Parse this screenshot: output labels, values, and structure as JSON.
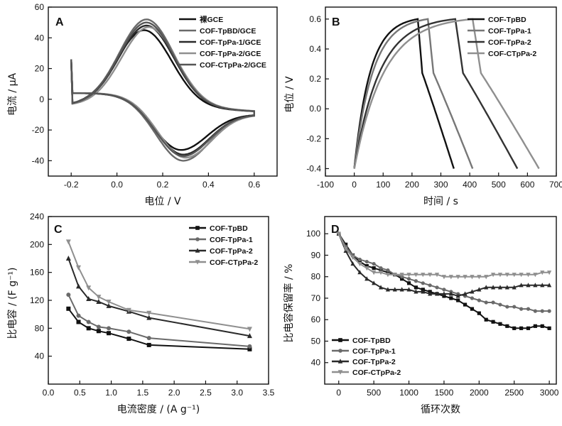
{
  "chart_data": [
    {
      "panel": "A",
      "type": "line",
      "xlabel": "电位 / V",
      "ylabel": "电流 / μA",
      "xlim": [
        -0.3,
        0.7
      ],
      "ylim": [
        -50,
        60
      ],
      "xticks": [
        -0.2,
        0.0,
        0.2,
        0.4,
        0.6
      ],
      "xtick_labels": [
        "-0.2",
        "0.0",
        "0.2",
        "0.4",
        "0.6"
      ],
      "yticks": [
        -40,
        -20,
        0,
        20,
        40,
        60
      ],
      "ytick_labels": [
        "-40",
        "-20",
        "0",
        "20",
        "40",
        "60"
      ],
      "legend_position": "top-right",
      "series": [
        {
          "name": "裸GCE",
          "color": "#111111",
          "ipa": 45,
          "epa": 0.12,
          "ipc": -33,
          "epc": 0.28
        },
        {
          "name": "COF-TpBD/GCE",
          "color": "#6a6a6a",
          "ipa": 52,
          "epa": 0.13,
          "ipc": -40,
          "epc": 0.29
        },
        {
          "name": "COF-TpPa-1/GCE",
          "color": "#2a2a2a",
          "ipa": 48,
          "epa": 0.13,
          "ipc": -36,
          "epc": 0.29
        },
        {
          "name": "COF-TpPa-2/GCE",
          "color": "#8f8f8f",
          "ipa": 47,
          "epa": 0.14,
          "ipc": -38,
          "epc": 0.3
        },
        {
          "name": "COF-CTpPa-2/GCE",
          "color": "#555555",
          "ipa": 50,
          "epa": 0.13,
          "ipc": -37,
          "epc": 0.29
        }
      ],
      "x_range_scan": [
        -0.2,
        0.6
      ]
    },
    {
      "panel": "B",
      "type": "line",
      "xlabel": "时间 / s",
      "ylabel": "电位 / V",
      "xlim": [
        -100,
        700
      ],
      "ylim": [
        -0.45,
        0.68
      ],
      "xticks": [
        -100,
        0,
        100,
        200,
        300,
        400,
        500,
        600,
        700
      ],
      "xtick_labels": [
        "-100",
        "0",
        "100",
        "200",
        "300",
        "400",
        "500",
        "600",
        "700"
      ],
      "yticks": [
        -0.4,
        -0.2,
        0.0,
        0.2,
        0.4,
        0.6
      ],
      "ytick_labels": [
        "-0.4",
        "-0.2",
        "0.0",
        "0.2",
        "0.4",
        "0.6"
      ],
      "legend_position": "top-right",
      "series": [
        {
          "name": "COF-TpBD",
          "color": "#111111",
          "charge_end": 220,
          "discharge_end": 345
        },
        {
          "name": "COF-TpPa-1",
          "color": "#777777",
          "charge_end": 255,
          "discharge_end": 410
        },
        {
          "name": "COF-TpPa-2",
          "color": "#333333",
          "charge_end": 350,
          "discharge_end": 565
        },
        {
          "name": "COF-CTpPa-2",
          "color": "#8f8f8f",
          "charge_end": 410,
          "discharge_end": 640
        }
      ],
      "v_min": -0.4,
      "v_max": 0.6
    },
    {
      "panel": "C",
      "type": "line",
      "xlabel": "电流密度 / (A g⁻¹)",
      "ylabel": "比电容 / (F g⁻¹)",
      "xlim": [
        0.0,
        3.5
      ],
      "ylim": [
        0,
        240
      ],
      "xticks": [
        0.0,
        0.5,
        1.0,
        1.5,
        2.0,
        2.5,
        3.0,
        3.5
      ],
      "xtick_labels": [
        "0.0",
        "0.5",
        "1.0",
        "1.5",
        "2.0",
        "2.5",
        "3.0",
        "3.5"
      ],
      "yticks": [
        40,
        80,
        120,
        160,
        200,
        240
      ],
      "ytick_labels": [
        "40",
        "80",
        "120",
        "160",
        "200",
        "240"
      ],
      "legend_position": "top-right",
      "x": [
        0.32,
        0.48,
        0.64,
        0.8,
        0.96,
        1.28,
        1.6,
        3.2
      ],
      "series": [
        {
          "name": "COF-TpBD",
          "color": "#111111",
          "marker": "square",
          "values": [
            108,
            89,
            80,
            76,
            73,
            65,
            56,
            50
          ]
        },
        {
          "name": "COF-TpPa-1",
          "color": "#6a6a6a",
          "marker": "circle",
          "values": [
            128,
            98,
            89,
            82,
            80,
            75,
            66,
            54
          ]
        },
        {
          "name": "COF-TpPa-2",
          "color": "#2a2a2a",
          "marker": "triangle-up",
          "values": [
            180,
            140,
            122,
            118,
            112,
            104,
            95,
            69
          ]
        },
        {
          "name": "COF-CTpPa-2",
          "color": "#8f8f8f",
          "marker": "triangle-down",
          "values": [
            204,
            167,
            138,
            125,
            118,
            106,
            102,
            79
          ]
        }
      ]
    },
    {
      "panel": "D",
      "type": "line",
      "xlabel": "循环次数",
      "ylabel": "比电容保留率 / %",
      "xlim": [
        -200,
        3100
      ],
      "ylim": [
        30,
        108
      ],
      "xticks": [
        0,
        500,
        1000,
        1500,
        2000,
        2500,
        3000
      ],
      "xtick_labels": [
        "0",
        "500",
        "1000",
        "1500",
        "2000",
        "2500",
        "3000"
      ],
      "yticks": [
        40,
        50,
        60,
        70,
        80,
        90,
        100
      ],
      "ytick_labels": [
        "40",
        "50",
        "60",
        "70",
        "80",
        "90",
        "100"
      ],
      "legend_position": "bottom-left",
      "x": [
        0,
        100,
        200,
        300,
        400,
        500,
        600,
        700,
        800,
        900,
        1000,
        1100,
        1200,
        1300,
        1400,
        1500,
        1600,
        1700,
        1800,
        1900,
        2000,
        2100,
        2200,
        2300,
        2400,
        2500,
        2600,
        2700,
        2800,
        2900,
        3000
      ],
      "series": [
        {
          "name": "COF-TpBD",
          "color": "#111111",
          "marker": "square",
          "values": [
            100,
            95,
            90,
            87,
            85,
            84,
            83,
            82,
            81,
            79,
            77,
            75,
            74,
            73,
            72,
            71,
            70,
            69,
            67,
            65,
            63,
            60,
            59,
            58,
            57,
            56,
            56,
            56,
            57,
            57,
            56
          ]
        },
        {
          "name": "COF-TpPa-1",
          "color": "#6a6a6a",
          "marker": "circle",
          "values": [
            100,
            94,
            90,
            88,
            87,
            86,
            84,
            83,
            81,
            80,
            79,
            78,
            77,
            76,
            75,
            74,
            73,
            72,
            71,
            70,
            69,
            68,
            68,
            67,
            66,
            66,
            65,
            65,
            64,
            64,
            64
          ]
        },
        {
          "name": "COF-TpPa-2",
          "color": "#2a2a2a",
          "marker": "triangle-up",
          "values": [
            100,
            92,
            86,
            82,
            79,
            77,
            75,
            74,
            74,
            74,
            74,
            73,
            73,
            72,
            72,
            72,
            72,
            71,
            72,
            73,
            74,
            75,
            75,
            75,
            75,
            75,
            76,
            76,
            76,
            76,
            76
          ]
        },
        {
          "name": "COF-CTpPa-2",
          "color": "#8f8f8f",
          "marker": "triangle-down",
          "values": [
            100,
            93,
            89,
            86,
            84,
            82,
            82,
            81,
            81,
            81,
            81,
            81,
            81,
            81,
            81,
            80,
            80,
            80,
            80,
            80,
            80,
            80,
            81,
            81,
            81,
            81,
            81,
            81,
            81,
            82,
            82
          ]
        }
      ]
    }
  ]
}
